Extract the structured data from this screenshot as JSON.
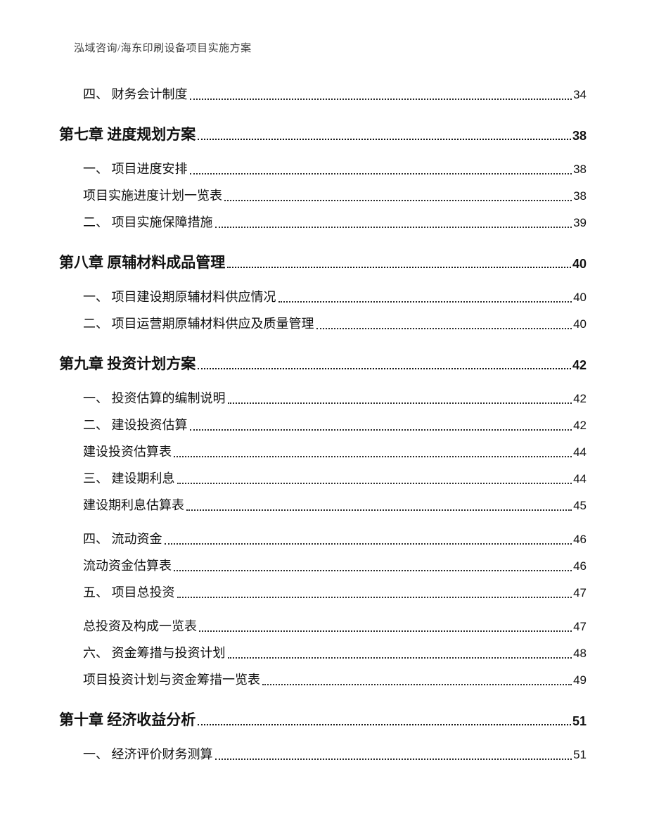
{
  "document": {
    "header": "泓域咨询/海东印刷设备项目实施方案"
  },
  "colors": {
    "page_background": "#ffffff",
    "header_text": "#3f3f3f",
    "body_text": "#111111",
    "leader_dots": "#2c2c2c"
  },
  "toc": {
    "entries": [
      {
        "level": "section",
        "label": "四、 财务会计制度",
        "page": "34"
      },
      {
        "level": "chapter",
        "label": "第七章 进度规划方案",
        "page": "38"
      },
      {
        "level": "section",
        "label": "一、 项目进度安排",
        "page": "38"
      },
      {
        "level": "caption",
        "label": "项目实施进度计划一览表",
        "page": "38"
      },
      {
        "level": "section",
        "label": "二、 项目实施保障措施",
        "page": "39"
      },
      {
        "level": "chapter",
        "label": "第八章 原辅材料成品管理",
        "page": "40"
      },
      {
        "level": "section",
        "label": "一、 项目建设期原辅材料供应情况",
        "page": "40"
      },
      {
        "level": "section",
        "label": "二、 项目运营期原辅材料供应及质量管理",
        "page": "40"
      },
      {
        "level": "chapter",
        "label": "第九章 投资计划方案",
        "page": "42"
      },
      {
        "level": "section",
        "label": "一、 投资估算的编制说明",
        "page": "42"
      },
      {
        "level": "section",
        "label": "二、 建设投资估算",
        "page": "42"
      },
      {
        "level": "caption",
        "label": "建设投资估算表",
        "page": "44"
      },
      {
        "level": "section",
        "label": "三、 建设期利息",
        "page": "44"
      },
      {
        "level": "caption",
        "label": "建设期利息估算表",
        "page": "45"
      },
      {
        "level": "section",
        "label": "四、 流动资金",
        "page": "46"
      },
      {
        "level": "caption",
        "label": "流动资金估算表",
        "page": "46"
      },
      {
        "level": "section",
        "label": "五、 项目总投资",
        "page": "47"
      },
      {
        "level": "caption",
        "label": "总投资及构成一览表",
        "page": "47"
      },
      {
        "level": "section",
        "label": "六、 资金筹措与投资计划",
        "page": "48"
      },
      {
        "level": "caption",
        "label": "项目投资计划与资金筹措一览表",
        "page": "49"
      },
      {
        "level": "chapter",
        "label": "第十章 经济收益分析",
        "page": "51"
      },
      {
        "level": "section",
        "label": "一、 经济评价财务测算",
        "page": "51"
      }
    ]
  }
}
